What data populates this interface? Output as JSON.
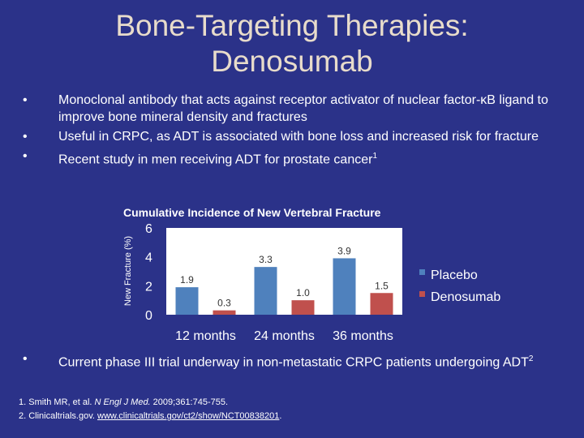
{
  "slide": {
    "title_line1": "Bone-Targeting Therapies:",
    "title_line2": "Denosumab",
    "bullets": [
      {
        "text": "Monoclonal antibody that acts against receptor activator of nuclear factor-κB ligand to improve bone mineral density and fractures"
      },
      {
        "text": "Useful in CRPC, as ADT is associated with bone loss and increased risk for fracture"
      },
      {
        "text": "Recent study in men receiving ADT for prostate cancer",
        "sup": "1"
      }
    ],
    "bullets_after_chart": [
      {
        "text": "Current phase III trial underway in non-metastatic CRPC patients undergoing ADT",
        "sup": "2"
      }
    ],
    "bullet_char": "•",
    "references": {
      "ref1_prefix": "1. Smith MR, et al. ",
      "ref1_journal": "N Engl J Med.",
      "ref1_suffix": " 2009;361:745-755.",
      "ref2_prefix": "2. Clinicaltrials.gov. ",
      "ref2_link": "www.clinicaltrials.gov/ct2/show/NCT00838201",
      "ref2_suffix": "."
    }
  },
  "chart_data": {
    "type": "bar",
    "title": "Cumulative Incidence of New Vertebral Fracture",
    "ylabel": "New Fracture (%)",
    "xlabel": "",
    "categories": [
      "12 months",
      "24 months",
      "36 months"
    ],
    "ylim": [
      0,
      6
    ],
    "yticks": [
      "0",
      "2",
      "4",
      "6"
    ],
    "legend_position": "right",
    "series": [
      {
        "name": "Placebo",
        "values": [
          1.9,
          3.3,
          3.9
        ],
        "labels": [
          "1.9",
          "3.3",
          "3.9"
        ],
        "color": "#4f81bd"
      },
      {
        "name": "Denosumab",
        "values": [
          0.3,
          1.0,
          1.5
        ],
        "labels": [
          "0.3",
          "1.0",
          "1.5"
        ],
        "color": "#c0504d"
      }
    ],
    "plot_background": "#ffffff",
    "grid": false
  }
}
